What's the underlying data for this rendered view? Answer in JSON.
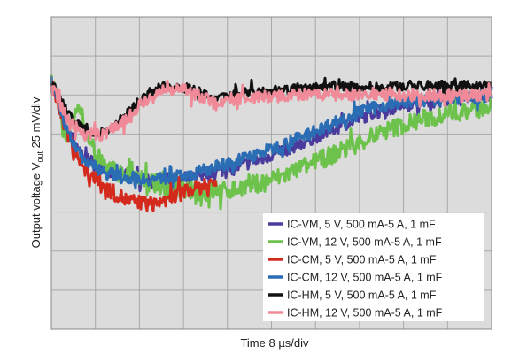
{
  "chart_data": {
    "type": "line",
    "title": "",
    "xlabel": "Time  8 µs/div",
    "ylabel_prefix": "Output voltage V",
    "ylabel_sub": "out",
    "ylabel_suffix": " 25 mV/div",
    "x_unit": "µs",
    "y_unit": "mV",
    "xlim": [
      0,
      80
    ],
    "ylim": [
      0,
      200
    ],
    "x_divisions": 10,
    "y_divisions": 8,
    "grid": true,
    "legend_position": "bottom-right",
    "plot_background": "#dcdcdc",
    "grid_color": "#a9a9a9",
    "series": [
      {
        "name": "IC-VM, 5 V, 500 mA-5 A, 1 mF",
        "color": "#4a3a9c",
        "noise": 4,
        "x": [
          0,
          1,
          3,
          6,
          10,
          14,
          18,
          22,
          26,
          30,
          34,
          38,
          42,
          46,
          50,
          55,
          60,
          65,
          70,
          75,
          80
        ],
        "y": [
          158,
          150,
          128,
          110,
          102,
          98,
          96,
          96,
          98,
          101,
          104,
          109,
          114,
          120,
          126,
          134,
          140,
          144,
          146,
          148,
          150
        ]
      },
      {
        "name": "IC-VM, 12 V, 500 mA-5 A, 1 mF",
        "color": "#6cc24a",
        "noise": 6,
        "x": [
          0,
          1,
          2,
          3,
          4,
          5,
          6,
          8,
          10,
          14,
          18,
          22,
          26,
          30,
          34,
          38,
          42,
          46,
          50,
          55,
          60,
          65,
          70,
          75,
          80
        ],
        "y": [
          158,
          150,
          135,
          122,
          133,
          143,
          132,
          112,
          104,
          98,
          94,
          90,
          88,
          88,
          90,
          94,
          98,
          104,
          110,
          118,
          126,
          132,
          137,
          140,
          142
        ]
      },
      {
        "name": "IC-CM, 5 V, 500 mA-5 A, 1 mF",
        "color": "#d42a1e",
        "noise": 5,
        "x": [
          0,
          1,
          3,
          6,
          10,
          14,
          18,
          22,
          24,
          26,
          28,
          30
        ],
        "y": [
          158,
          148,
          124,
          102,
          90,
          82,
          80,
          84,
          88,
          90,
          92,
          94
        ]
      },
      {
        "name": "IC-CM, 12 V, 500 mA-5 A, 1 mF",
        "color": "#2a6db5",
        "noise": 4,
        "x": [
          0,
          1,
          3,
          6,
          10,
          14,
          18,
          22,
          26,
          30,
          34,
          38,
          42,
          46,
          50,
          55,
          60,
          65,
          70,
          75,
          80
        ],
        "y": [
          158,
          150,
          126,
          108,
          100,
          97,
          96,
          97,
          100,
          104,
          108,
          113,
          118,
          124,
          130,
          138,
          143,
          146,
          147,
          148,
          149
        ]
      },
      {
        "name": "IC-HM, 5 V, 500 mA-5 A, 1 mF",
        "color": "#111111",
        "noise": 3,
        "x": [
          0,
          1,
          3,
          6,
          9,
          12,
          15,
          18,
          20,
          22,
          24,
          26,
          28,
          30,
          32,
          35,
          40,
          45,
          50,
          55,
          60,
          65,
          70,
          75,
          80
        ],
        "y": [
          158,
          152,
          138,
          128,
          125,
          132,
          143,
          152,
          155,
          156,
          155,
          153,
          150,
          146,
          150,
          152,
          153,
          154,
          155,
          155,
          155,
          156,
          156,
          156,
          156
        ]
      },
      {
        "name": "IC-HM, 12 V, 500 mA-5 A, 1 mF",
        "color": "#f08a98",
        "noise": 4,
        "x": [
          0,
          1,
          3,
          6,
          9,
          12,
          15,
          18,
          20,
          22,
          24,
          26,
          28,
          30,
          32,
          35,
          40,
          45,
          50,
          55,
          60,
          65,
          70,
          75,
          80
        ],
        "y": [
          158,
          150,
          134,
          125,
          124,
          130,
          140,
          148,
          152,
          153,
          153,
          151,
          148,
          144,
          147,
          148,
          149,
          150,
          150,
          150,
          150,
          150,
          150,
          150,
          150
        ]
      }
    ]
  }
}
